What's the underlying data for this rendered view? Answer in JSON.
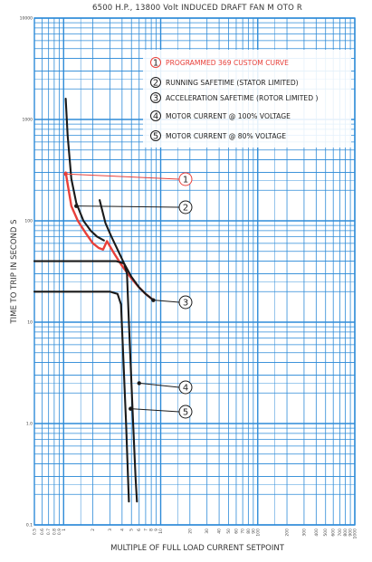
{
  "chart_data": {
    "type": "line",
    "title": "6500 H.P., 13800 Volt INDUCED DRAFT     FAN  M  OTO R",
    "xlabel": "MULTIPLE OF FULL LOAD CURRENT SETPOINT",
    "ylabel": "TIME  TO  TRIP IN SECOND  S",
    "xscale": "log",
    "yscale": "log",
    "xlim": [
      0.5,
      1000
    ],
    "ylim": [
      0.1,
      10000
    ],
    "grid": true,
    "x_tick_labels": [
      "0.5",
      "0.6",
      "0.7",
      "0.8",
      "0.9",
      "1",
      "2",
      "3",
      "4",
      "5",
      "6",
      "7",
      "8",
      "9",
      "10",
      "20",
      "30",
      "40",
      "50",
      "60",
      "70",
      "80",
      "90",
      "100",
      "200",
      "300",
      "400",
      "500",
      "600",
      "700",
      "800",
      "900",
      "1000"
    ],
    "y_tick_labels": [
      "0.1",
      "1.0",
      "10",
      "100",
      "1000",
      "10000"
    ],
    "legend_position": "top-right",
    "colors": {
      "grid": "#2e8bd8",
      "curves": "#1a1a1a",
      "custom_curve": "#e8403a"
    },
    "legend": [
      {
        "num": "1",
        "label": "PROGRAMMED 369 CUSTOM CURVE"
      },
      {
        "num": "2",
        "label": "RUNNING SAFETIME (STATOR LIMITED)"
      },
      {
        "num": "3",
        "label": "ACCELERATION SAFETIME (ROTOR LIMITED )"
      },
      {
        "num": "4",
        "label": "MOTOR CURRENT @ 100% VOLTAGE"
      },
      {
        "num": "5",
        "label": "MOTOR CURRENT @ 80% VOLTAGE"
      }
    ],
    "series": [
      {
        "name": "PROGRAMMED 369 CUSTOM CURVE",
        "x": [
          1.05,
          1.2,
          1.4,
          1.7,
          2.0,
          2.3,
          2.55,
          2.8,
          3.3,
          4.0,
          5.0,
          6.0,
          7.0,
          8.4
        ],
        "y": [
          300,
          140,
          100,
          75,
          60,
          54,
          52,
          63,
          48,
          36,
          27,
          22,
          19,
          16.5
        ]
      },
      {
        "name": "RUNNING SAFETIME (STATOR LIMITED)",
        "x": [
          1.05,
          1.1,
          1.2,
          1.35,
          1.6,
          1.9,
          2.2,
          2.6
        ],
        "y": [
          1600,
          700,
          260,
          150,
          100,
          80,
          70,
          64
        ]
      },
      {
        "name": "ACCELERATION SAFETIME (ROTOR LIMITED )",
        "x": [
          2.35,
          2.7,
          3.1,
          3.6,
          4.2,
          5.0,
          6.0,
          7.0,
          8.4
        ],
        "y": [
          160,
          95,
          70,
          52,
          38,
          28,
          22,
          19,
          16.5
        ]
      },
      {
        "name": "MOTOR CURRENT @ 100% VOLTAGE",
        "x": [
          0.5,
          3.5,
          4.2,
          4.5,
          4.7,
          5.2,
          5.5,
          5.7
        ],
        "y": [
          40,
          40,
          38,
          30,
          10,
          1.0,
          0.3,
          0.17
        ]
      },
      {
        "name": "MOTOR CURRENT @ 80% VOLTAGE",
        "x": [
          0.5,
          3.0,
          3.6,
          3.9,
          4.1,
          4.4,
          4.6,
          4.7
        ],
        "y": [
          20,
          20,
          19,
          15,
          5,
          1.0,
          0.3,
          0.17
        ]
      }
    ],
    "callouts": [
      {
        "num": "1",
        "x": 1.05,
        "y": 290
      },
      {
        "num": "2",
        "x": 1.35,
        "y": 140
      },
      {
        "num": "3",
        "x": 8.4,
        "y": 16.5
      },
      {
        "num": "4",
        "x": 6.0,
        "y": 2.5
      },
      {
        "num": "5",
        "x": 4.9,
        "y": 1.4
      }
    ]
  }
}
